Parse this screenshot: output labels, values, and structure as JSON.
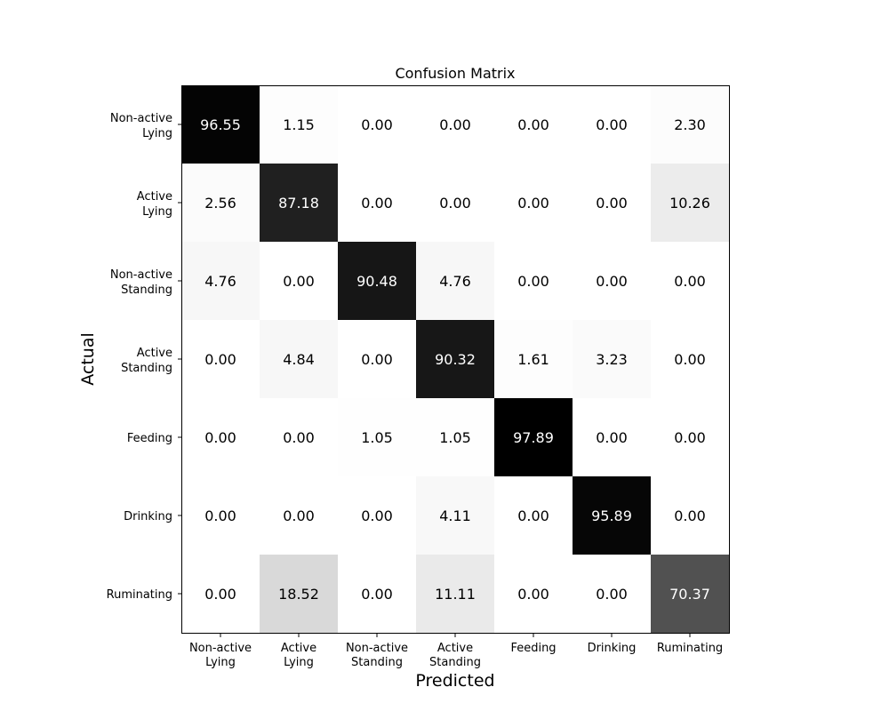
{
  "chart_data": {
    "type": "heatmap",
    "title": "Confusion Matrix",
    "xlabel": "Predicted",
    "ylabel": "Actual",
    "x_categories": [
      [
        "Non-active",
        "Lying"
      ],
      [
        "Active",
        "Lying"
      ],
      [
        "Non-active",
        "Standing"
      ],
      [
        "Active",
        "Standing"
      ],
      [
        "Feeding"
      ],
      [
        "Drinking"
      ],
      [
        "Ruminating"
      ]
    ],
    "y_categories": [
      [
        "Non-active",
        "Lying"
      ],
      [
        "Active",
        "Lying"
      ],
      [
        "Non-active",
        "Standing"
      ],
      [
        "Active",
        "Standing"
      ],
      [
        "Feeding"
      ],
      [
        "Drinking"
      ],
      [
        "Ruminating"
      ]
    ],
    "values": [
      [
        96.55,
        1.15,
        0.0,
        0.0,
        0.0,
        0.0,
        2.3
      ],
      [
        2.56,
        87.18,
        0.0,
        0.0,
        0.0,
        0.0,
        10.26
      ],
      [
        4.76,
        0.0,
        90.48,
        4.76,
        0.0,
        0.0,
        0.0
      ],
      [
        0.0,
        4.84,
        0.0,
        90.32,
        1.61,
        3.23,
        0.0
      ],
      [
        0.0,
        0.0,
        1.05,
        1.05,
        97.89,
        0.0,
        0.0
      ],
      [
        0.0,
        0.0,
        0.0,
        4.11,
        0.0,
        95.89,
        0.0
      ],
      [
        0.0,
        18.52,
        0.0,
        11.11,
        0.0,
        0.0,
        70.37
      ]
    ],
    "value_format": "0.00",
    "colormap": "Greys",
    "color_range": [
      0,
      97.89
    ]
  }
}
